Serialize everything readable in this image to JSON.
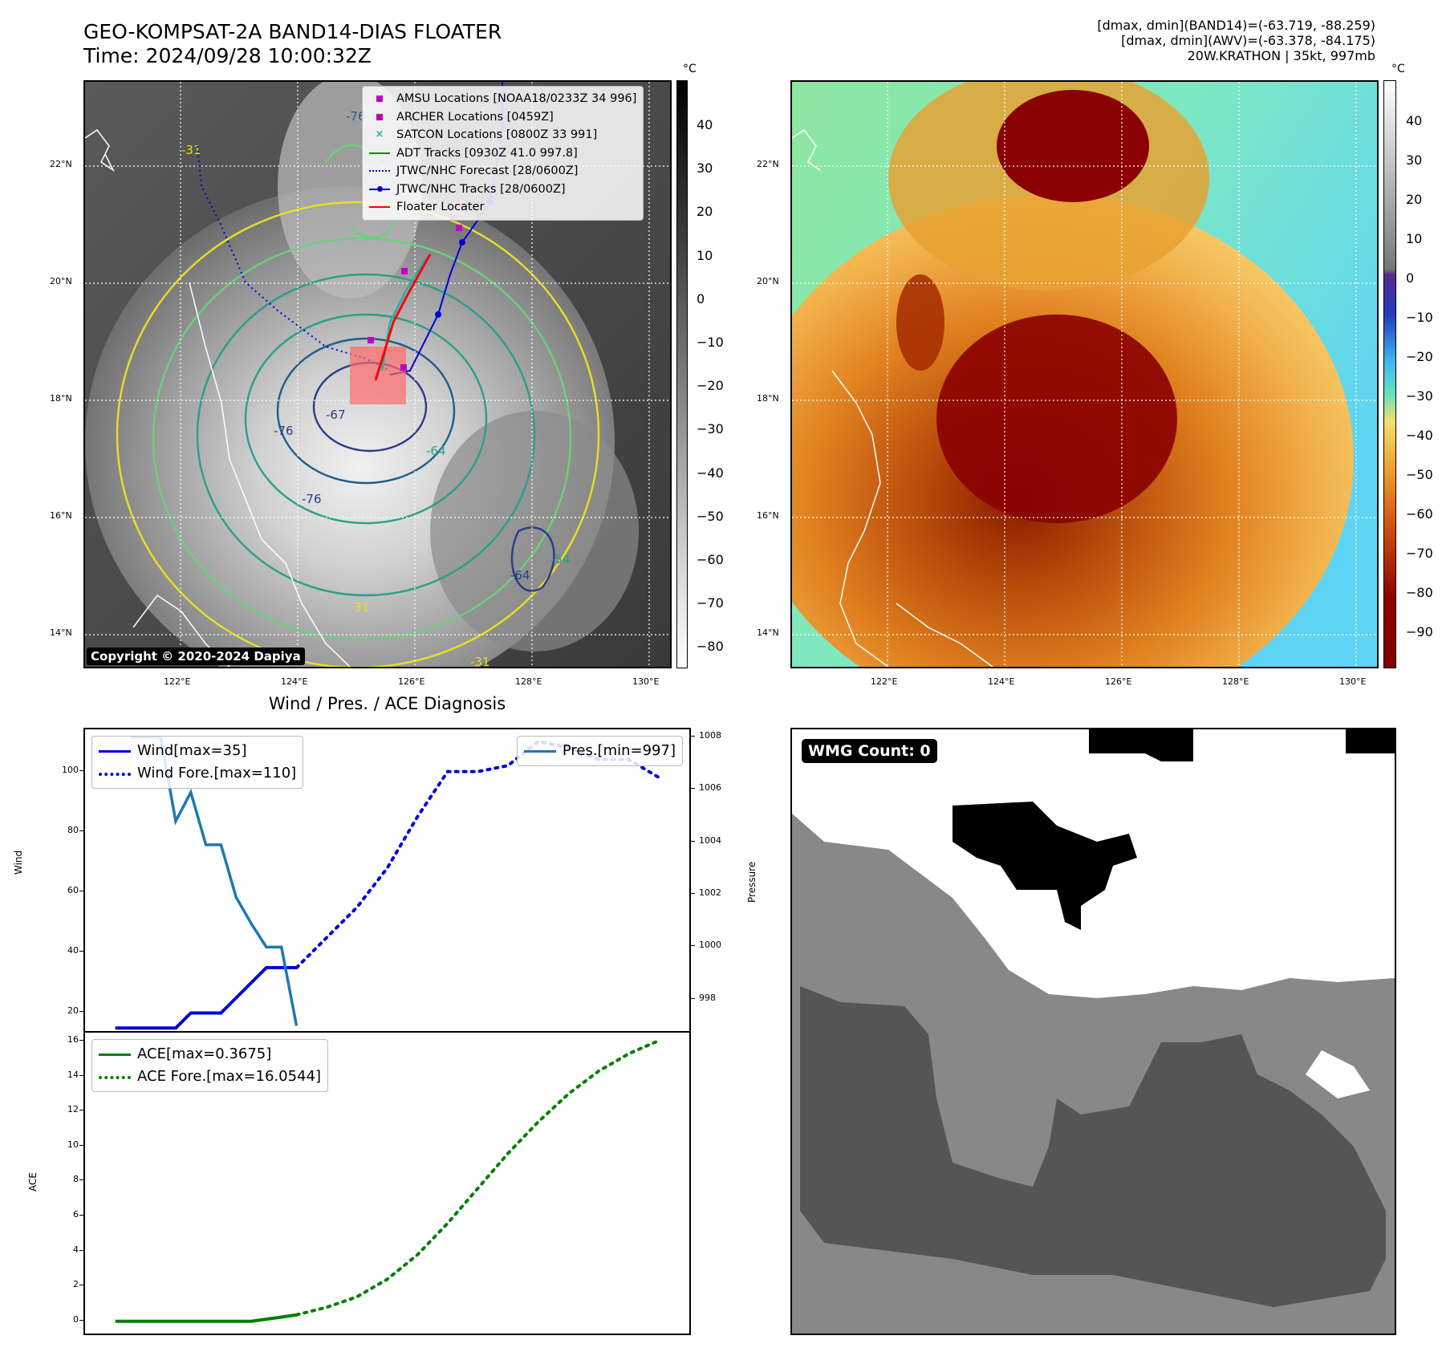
{
  "header": {
    "title_line1": "GEO-KOMPSAT-2A BAND14-DIAS FLOATER",
    "title_line2": "Time: 2024/09/28 10:00:32Z",
    "info_line1": "[dmax, dmin](BAND14)=(-63.719, -88.259)",
    "info_line2": "[dmax, dmin](AWV)=(-63.378, -84.175)",
    "info_line3": "20W.KRATHON | 35kt, 997mb"
  },
  "map": {
    "lat_labels": [
      "22°N",
      "20°N",
      "18°N",
      "16°N",
      "14°N"
    ],
    "lon_labels": [
      "122°E",
      "124°E",
      "126°E",
      "128°E",
      "130°E"
    ],
    "copyright": "Copyright © 2020-2024 Dapiya",
    "contour_labels": [
      "-76",
      "-76",
      "-64",
      "-76",
      "-64",
      "-54",
      "-67",
      "-31",
      "-31",
      "-31"
    ],
    "colors": {
      "amsu": "#c000c0",
      "satcon": "#20b0b0",
      "adt": "#1a7f1a",
      "jtwc": "#0000dd",
      "floater": "#ff0000"
    }
  },
  "colorbar_left": {
    "unit": "°C",
    "ticks": [
      "40",
      "30",
      "20",
      "10",
      "0",
      "−10",
      "−20",
      "−30",
      "−40",
      "−50",
      "−60",
      "−70",
      "−80"
    ]
  },
  "colorbar_right": {
    "unit": "°C",
    "ticks": [
      "40",
      "30",
      "20",
      "10",
      "0",
      "−10",
      "−20",
      "−30",
      "−40",
      "−50",
      "−60",
      "−70",
      "−80",
      "−90"
    ]
  },
  "legend": {
    "amsu": "AMSU Locations [NOAA18/0233Z 34 996]",
    "archer": "ARCHER Locations [0459Z]",
    "satcon": "SATCON Locations [0800Z 33 991]",
    "adt": "ADT Tracks [0930Z 41.0 997.8]",
    "jtwc_forecast": "JTWC/NHC Forecast [28/0600Z]",
    "jtwc_tracks": "JTWC/NHC Tracks [28/0600Z]",
    "floater": "Floater Locater"
  },
  "diagnosis": {
    "title": "Wind / Pres. / ACE Diagnosis",
    "wind_ylabel": "Wind",
    "pres_ylabel": "Pressure",
    "ace_ylabel": "ACE",
    "legend_wind": "Wind[max=35]",
    "legend_wind_fore": "Wind Fore.[max=110]",
    "legend_pres": "Pres.[min=997]",
    "legend_ace": "ACE[max=0.3675]",
    "legend_ace_fore": "ACE Fore.[max=16.0544]"
  },
  "wmg": {
    "label": "WMG Count: 0"
  },
  "chart_data": [
    {
      "type": "line",
      "title": "Wind / Pres. / ACE Diagnosis",
      "ylabel": "Wind",
      "ylim": [
        14,
        114
      ],
      "yticks": [
        20,
        40,
        60,
        80,
        100
      ],
      "series": [
        {
          "name": "Wind[max=35]",
          "style": "solid",
          "color": "#0000dd",
          "x": [
            0,
            1,
            2,
            3,
            4,
            5,
            6,
            7,
            8,
            9,
            10,
            11,
            12
          ],
          "values": [
            15,
            15,
            15,
            15,
            15,
            20,
            20,
            20,
            25,
            30,
            35,
            35,
            35
          ]
        },
        {
          "name": "Wind Fore.[max=110]",
          "style": "dotted",
          "color": "#0000dd",
          "x": [
            12,
            14,
            16,
            18,
            20,
            22,
            24,
            26,
            28,
            30,
            32,
            34,
            36
          ],
          "values": [
            35,
            45,
            55,
            68,
            85,
            100,
            100,
            102,
            110,
            108,
            104,
            104,
            98
          ]
        }
      ]
    },
    {
      "type": "line",
      "ylabel": "Pressure",
      "ylim": [
        996.8,
        1008.3
      ],
      "yticks": [
        998,
        1000,
        1002,
        1004,
        1006,
        1008
      ],
      "series": [
        {
          "name": "Pres.[min=997]",
          "style": "solid",
          "color": "#1f77b4",
          "x": [
            1,
            3,
            4,
            5,
            6,
            7,
            8,
            9,
            10,
            11,
            12
          ],
          "values": [
            1008,
            1008,
            1004.8,
            1005.9,
            1003.9,
            1003.9,
            1001.9,
            1000.9,
            1000,
            1000,
            997
          ]
        }
      ]
    },
    {
      "type": "line",
      "ylabel": "ACE",
      "ylim": [
        -0.7,
        16.5
      ],
      "yticks": [
        0,
        2,
        4,
        6,
        8,
        10,
        12,
        14,
        16
      ],
      "series": [
        {
          "name": "ACE[max=0.3675]",
          "style": "solid",
          "color": "#008000",
          "x": [
            0,
            2,
            4,
            6,
            8,
            9,
            10,
            11,
            12
          ],
          "values": [
            0,
            0,
            0,
            0,
            0,
            0,
            0.12,
            0.24,
            0.3675
          ]
        },
        {
          "name": "ACE Fore.[max=16.0544]",
          "style": "dotted",
          "color": "#008000",
          "x": [
            12,
            14,
            16,
            18,
            20,
            22,
            24,
            26,
            28,
            30,
            32,
            34,
            36
          ],
          "values": [
            0.37,
            0.8,
            1.4,
            2.4,
            3.8,
            5.6,
            7.6,
            9.6,
            11.4,
            13,
            14.3,
            15.3,
            16.05
          ]
        }
      ]
    }
  ]
}
